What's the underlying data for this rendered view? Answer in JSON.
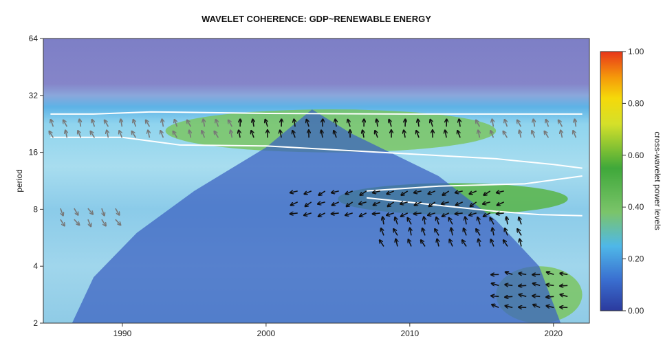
{
  "chart_data": {
    "type": "heatmap",
    "title": "WAVELET COHERENCE: GDP~RENEWABLE ENERGY",
    "xlabel": "",
    "ylabel": "period",
    "xlim": [
      1984.5,
      2022.5
    ],
    "ylim": [
      2,
      64
    ],
    "y_scale": "log2",
    "x_ticks": [
      1990,
      2000,
      2010,
      2020
    ],
    "y_ticks": [
      2,
      4,
      8,
      16,
      32,
      64
    ],
    "colorbar": {
      "label": "cross-wavelet power levels",
      "min": 0.0,
      "max": 1.0,
      "ticks": [
        "0.00",
        "0.20",
        "0.40",
        "0.60",
        "0.80",
        "1.00"
      ],
      "colors": [
        "#2b3a9e",
        "#3a6fd0",
        "#4fb8e8",
        "#7bc46a",
        "#3fa83a",
        "#d4e02a",
        "#f5d90a",
        "#f59a0a",
        "#e8361a"
      ]
    },
    "significance_contours": [
      {
        "name": "band-upper",
        "points": [
          [
            1985,
            25.5
          ],
          [
            1988,
            25.5
          ],
          [
            1992,
            26.2
          ],
          [
            2000,
            25.7
          ],
          [
            2010,
            25.5
          ],
          [
            2022,
            25.5
          ]
        ]
      },
      {
        "name": "band-lower",
        "points": [
          [
            1985,
            19.2
          ],
          [
            1990,
            19.2
          ],
          [
            1994,
            17.5
          ],
          [
            2000,
            17.3
          ],
          [
            2008,
            16.0
          ],
          [
            2016,
            14.8
          ],
          [
            2020,
            13.8
          ],
          [
            2022,
            13.2
          ]
        ]
      },
      {
        "name": "mid-upper",
        "points": [
          [
            2007,
            10.0
          ],
          [
            2012,
            10.6
          ],
          [
            2018,
            10.9
          ],
          [
            2022,
            12.0
          ]
        ]
      },
      {
        "name": "mid-lower",
        "points": [
          [
            2007,
            9.2
          ],
          [
            2012,
            8.4
          ],
          [
            2016,
            7.8
          ],
          [
            2019,
            7.5
          ],
          [
            2022,
            7.4
          ]
        ]
      }
    ],
    "cone_of_influence": [
      [
        1986.5,
        2
      ],
      [
        1988,
        3.5
      ],
      [
        1991,
        6
      ],
      [
        1995,
        10
      ],
      [
        2000,
        17
      ],
      [
        2003.2,
        27
      ],
      [
        2006,
        20
      ],
      [
        2012,
        12
      ],
      [
        2016,
        7
      ],
      [
        2019,
        4
      ],
      [
        2020.5,
        2
      ]
    ],
    "coherence_regions": [
      {
        "name": "upper-band",
        "x_range": [
          1993,
          2016
        ],
        "period_range": [
          16,
          27
        ],
        "level": 0.45
      },
      {
        "name": "middle-band",
        "x_range": [
          2005,
          2021
        ],
        "period_range": [
          7.5,
          11
        ],
        "level": 0.5
      },
      {
        "name": "lower-corner",
        "x_range": [
          2016,
          2022
        ],
        "period_range": [
          2,
          4
        ],
        "level": 0.45
      }
    ],
    "phase_arrows": [
      {
        "region": "upper-band-significant",
        "x_range": [
          1998,
          2014
        ],
        "period_range": [
          17,
          23
        ],
        "direction_deg": 260,
        "significant": true
      },
      {
        "region": "upper-band-outside",
        "x_range": [
          1985,
          2022
        ],
        "period_range": [
          17,
          23
        ],
        "direction_deg": 250,
        "significant": false
      },
      {
        "region": "middle-band",
        "x_range": [
          2002,
          2017
        ],
        "period_range": [
          7.5,
          10.5
        ],
        "direction_deg": 160,
        "significant": true
      },
      {
        "region": "mid-lower",
        "x_range": [
          2008,
          2018
        ],
        "period_range": [
          4.5,
          7
        ],
        "direction_deg": 250,
        "significant": true
      },
      {
        "region": "lower-corner",
        "x_range": [
          2016,
          2021
        ],
        "period_range": [
          2.2,
          3.8
        ],
        "direction_deg": 190,
        "significant": true
      },
      {
        "region": "left-cluster",
        "x_range": [
          1985.5,
          1990
        ],
        "period_range": [
          6.5,
          8.5
        ],
        "direction_deg": 60,
        "significant": false
      }
    ]
  }
}
